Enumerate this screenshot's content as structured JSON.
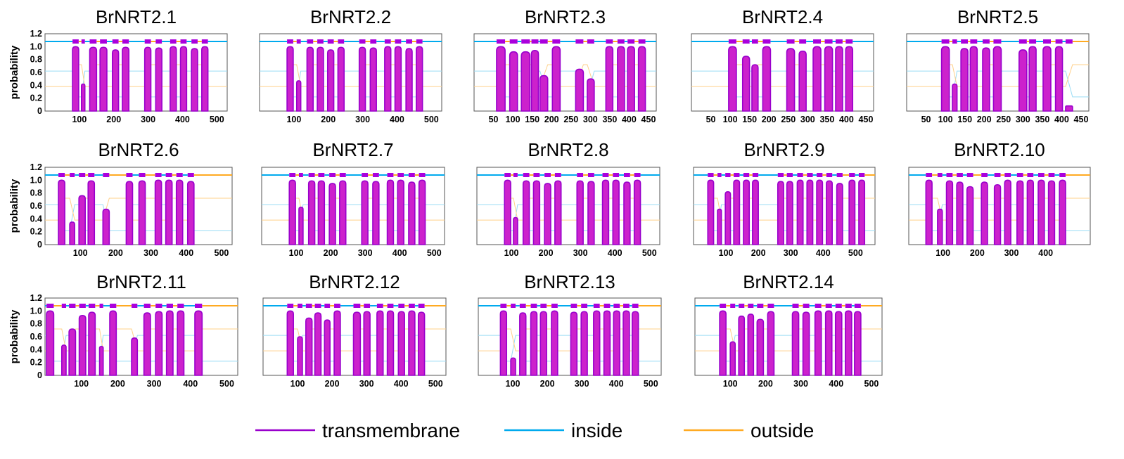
{
  "chart_data": {
    "type": "line",
    "panels": [
      {
        "title": "BrNRT2.1",
        "xmax": 530,
        "xticks": [
          100,
          200,
          300,
          400,
          500
        ],
        "yticks": [
          0,
          0.2,
          0.4,
          0.6,
          0.8,
          1.0,
          1.2
        ],
        "ylabel": "probability",
        "tm": [
          [
            80,
            98,
            1.0
          ],
          [
            106,
            116,
            0.42
          ],
          [
            130,
            150,
            0.99
          ],
          [
            160,
            180,
            0.99
          ],
          [
            196,
            214,
            0.95
          ],
          [
            225,
            244,
            0.99
          ],
          [
            290,
            308,
            0.99
          ],
          [
            322,
            340,
            0.98
          ],
          [
            364,
            382,
            1.0
          ],
          [
            394,
            412,
            1.0
          ],
          [
            426,
            444,
            0.97
          ],
          [
            456,
            474,
            1.0
          ]
        ]
      },
      {
        "title": "BrNRT2.2",
        "xmax": 530,
        "xticks": [
          100,
          200,
          300,
          400,
          500
        ],
        "yticks": [],
        "ylabel": "",
        "tm": [
          [
            80,
            98,
            1.0
          ],
          [
            108,
            120,
            0.47
          ],
          [
            138,
            156,
            0.99
          ],
          [
            168,
            186,
            0.99
          ],
          [
            198,
            216,
            0.95
          ],
          [
            228,
            246,
            0.99
          ],
          [
            290,
            308,
            0.99
          ],
          [
            322,
            340,
            0.98
          ],
          [
            364,
            382,
            1.0
          ],
          [
            394,
            412,
            1.0
          ],
          [
            426,
            444,
            0.97
          ],
          [
            456,
            474,
            1.0
          ]
        ]
      },
      {
        "title": "BrNRT2.3",
        "xmax": 470,
        "xticks": [
          50,
          100,
          150,
          200,
          250,
          300,
          350,
          400,
          450
        ],
        "yticks": [],
        "ylabel": "",
        "tm": [
          [
            58,
            80,
            1.0
          ],
          [
            92,
            112,
            0.92
          ],
          [
            122,
            144,
            0.92
          ],
          [
            148,
            166,
            0.94
          ],
          [
            170,
            190,
            0.55
          ],
          [
            202,
            222,
            1.0
          ],
          [
            262,
            282,
            0.65
          ],
          [
            292,
            310,
            0.5
          ],
          [
            340,
            358,
            1.0
          ],
          [
            370,
            388,
            1.0
          ],
          [
            396,
            414,
            1.0
          ],
          [
            424,
            442,
            1.0
          ]
        ]
      },
      {
        "title": "BrNRT2.4",
        "xmax": 470,
        "xticks": [
          50,
          100,
          150,
          200,
          250,
          300,
          350,
          400,
          450
        ],
        "yticks": [],
        "ylabel": "",
        "tm": [
          [
            96,
            116,
            1.0
          ],
          [
            132,
            150,
            0.85
          ],
          [
            156,
            172,
            0.72
          ],
          [
            184,
            204,
            1.0
          ],
          [
            246,
            266,
            0.97
          ],
          [
            278,
            296,
            0.93
          ],
          [
            314,
            334,
            1.0
          ],
          [
            344,
            364,
            1.0
          ],
          [
            372,
            390,
            1.0
          ],
          [
            398,
            416,
            1.0
          ]
        ]
      },
      {
        "title": "BrNRT2.5",
        "xmax": 470,
        "xticks": [
          50,
          100,
          150,
          200,
          250,
          300,
          350,
          400,
          450
        ],
        "yticks": [],
        "ylabel": "",
        "tm": [
          [
            90,
            110,
            1.0
          ],
          [
            118,
            130,
            0.42
          ],
          [
            140,
            158,
            0.97
          ],
          [
            164,
            182,
            1.0
          ],
          [
            196,
            214,
            0.98
          ],
          [
            224,
            244,
            1.0
          ],
          [
            290,
            310,
            0.95
          ],
          [
            316,
            334,
            1.0
          ],
          [
            352,
            372,
            1.0
          ],
          [
            384,
            402,
            1.0
          ],
          [
            410,
            428,
            0.08
          ]
        ]
      },
      {
        "title": "BrNRT2.6",
        "xmax": 530,
        "xticks": [
          100,
          200,
          300,
          400,
          500
        ],
        "yticks": [
          0,
          0.2,
          0.4,
          0.6,
          0.8,
          1.0,
          1.2
        ],
        "ylabel": "probability",
        "tm": [
          [
            38,
            56,
            1.0
          ],
          [
            70,
            84,
            0.35
          ],
          [
            96,
            114,
            0.76
          ],
          [
            122,
            140,
            0.99
          ],
          [
            164,
            182,
            0.55
          ],
          [
            230,
            248,
            0.98
          ],
          [
            266,
            284,
            0.99
          ],
          [
            312,
            330,
            1.0
          ],
          [
            342,
            360,
            1.0
          ],
          [
            372,
            390,
            1.0
          ],
          [
            404,
            422,
            0.98
          ]
        ]
      },
      {
        "title": "BrNRT2.7",
        "xmax": 530,
        "xticks": [
          100,
          200,
          300,
          400,
          500
        ],
        "yticks": [],
        "ylabel": "",
        "tm": [
          [
            80,
            98,
            1.0
          ],
          [
            108,
            120,
            0.58
          ],
          [
            136,
            154,
            0.99
          ],
          [
            164,
            182,
            0.99
          ],
          [
            196,
            214,
            0.95
          ],
          [
            226,
            244,
            0.99
          ],
          [
            290,
            308,
            0.99
          ],
          [
            322,
            340,
            0.98
          ],
          [
            364,
            382,
            1.0
          ],
          [
            394,
            412,
            1.0
          ],
          [
            426,
            444,
            0.97
          ],
          [
            456,
            474,
            1.0
          ]
        ]
      },
      {
        "title": "BrNRT2.8",
        "xmax": 530,
        "xticks": [
          100,
          200,
          300,
          400,
          500
        ],
        "yticks": [],
        "ylabel": "",
        "tm": [
          [
            80,
            98,
            1.0
          ],
          [
            106,
            118,
            0.42
          ],
          [
            134,
            152,
            0.99
          ],
          [
            164,
            182,
            0.99
          ],
          [
            196,
            214,
            0.95
          ],
          [
            226,
            244,
            0.99
          ],
          [
            290,
            308,
            0.99
          ],
          [
            322,
            340,
            0.98
          ],
          [
            364,
            382,
            1.0
          ],
          [
            394,
            412,
            1.0
          ],
          [
            426,
            444,
            0.97
          ],
          [
            456,
            474,
            1.0
          ]
        ]
      },
      {
        "title": "BrNRT2.9",
        "xmax": 560,
        "xticks": [
          100,
          200,
          300,
          400,
          500
        ],
        "yticks": [],
        "ylabel": "",
        "tm": [
          [
            44,
            62,
            1.0
          ],
          [
            74,
            86,
            0.55
          ],
          [
            98,
            114,
            0.82
          ],
          [
            124,
            142,
            1.0
          ],
          [
            154,
            172,
            1.0
          ],
          [
            182,
            200,
            1.0
          ],
          [
            260,
            278,
            0.98
          ],
          [
            288,
            306,
            0.98
          ],
          [
            320,
            338,
            1.0
          ],
          [
            350,
            368,
            1.0
          ],
          [
            380,
            398,
            1.0
          ],
          [
            410,
            428,
            0.99
          ],
          [
            442,
            460,
            0.95
          ],
          [
            480,
            498,
            1.0
          ],
          [
            510,
            528,
            1.0
          ]
        ]
      },
      {
        "title": "BrNRT2.10",
        "xmax": 530,
        "xticks": [
          100,
          200,
          300,
          400
        ],
        "yticks": [],
        "ylabel": "",
        "tm": [
          [
            50,
            68,
            1.0
          ],
          [
            84,
            98,
            0.55
          ],
          [
            110,
            128,
            0.99
          ],
          [
            140,
            158,
            0.97
          ],
          [
            170,
            188,
            0.9
          ],
          [
            212,
            230,
            0.97
          ],
          [
            250,
            268,
            0.93
          ],
          [
            280,
            298,
            1.0
          ],
          [
            316,
            334,
            0.99
          ],
          [
            346,
            364,
            1.0
          ],
          [
            378,
            396,
            1.0
          ],
          [
            408,
            426,
            0.99
          ],
          [
            440,
            458,
            1.0
          ]
        ]
      },
      {
        "title": "BrNRT2.11",
        "xmax": 530,
        "xticks": [
          100,
          200,
          300,
          400,
          500
        ],
        "yticks": [
          0,
          0.2,
          0.4,
          0.6,
          0.8,
          1.0,
          1.2
        ],
        "ylabel": "probability",
        "tm": [
          [
            4,
            24,
            1.0
          ],
          [
            46,
            58,
            0.47
          ],
          [
            66,
            84,
            0.72
          ],
          [
            94,
            112,
            0.93
          ],
          [
            120,
            138,
            0.98
          ],
          [
            150,
            160,
            0.45
          ],
          [
            178,
            196,
            1.0
          ],
          [
            238,
            254,
            0.58
          ],
          [
            272,
            290,
            0.97
          ],
          [
            304,
            322,
            0.99
          ],
          [
            334,
            352,
            1.0
          ],
          [
            364,
            382,
            1.0
          ],
          [
            412,
            432,
            1.0
          ]
        ]
      },
      {
        "title": "BrNRT2.12",
        "xmax": 530,
        "xticks": [
          100,
          200,
          300,
          400,
          500
        ],
        "yticks": [],
        "ylabel": "",
        "tm": [
          [
            70,
            88,
            1.0
          ],
          [
            100,
            114,
            0.6
          ],
          [
            124,
            142,
            0.89
          ],
          [
            150,
            168,
            0.97
          ],
          [
            178,
            194,
            0.86
          ],
          [
            206,
            224,
            1.0
          ],
          [
            262,
            282,
            0.98
          ],
          [
            292,
            310,
            0.99
          ],
          [
            330,
            348,
            1.0
          ],
          [
            360,
            378,
            1.0
          ],
          [
            392,
            410,
            0.99
          ],
          [
            422,
            440,
            1.0
          ],
          [
            450,
            468,
            0.98
          ]
        ]
      },
      {
        "title": "BrNRT2.13",
        "xmax": 530,
        "xticks": [
          100,
          200,
          300,
          400,
          500
        ],
        "yticks": [],
        "ylabel": "",
        "tm": [
          [
            64,
            82,
            1.0
          ],
          [
            94,
            108,
            0.27
          ],
          [
            120,
            138,
            0.97
          ],
          [
            152,
            170,
            0.99
          ],
          [
            180,
            198,
            0.99
          ],
          [
            212,
            230,
            1.0
          ],
          [
            268,
            286,
            0.98
          ],
          [
            298,
            316,
            0.99
          ],
          [
            334,
            352,
            1.0
          ],
          [
            364,
            382,
            1.0
          ],
          [
            392,
            410,
            1.0
          ],
          [
            420,
            438,
            1.0
          ],
          [
            446,
            464,
            0.99
          ]
        ]
      },
      {
        "title": "BrNRT2.14",
        "xmax": 530,
        "xticks": [
          100,
          200,
          300,
          400,
          500
        ],
        "yticks": [],
        "ylabel": "",
        "tm": [
          [
            70,
            88,
            1.0
          ],
          [
            100,
            114,
            0.52
          ],
          [
            124,
            140,
            0.92
          ],
          [
            150,
            166,
            0.95
          ],
          [
            176,
            194,
            0.87
          ],
          [
            206,
            224,
            0.99
          ],
          [
            276,
            294,
            0.99
          ],
          [
            306,
            324,
            0.98
          ],
          [
            340,
            358,
            1.0
          ],
          [
            370,
            388,
            1.0
          ],
          [
            398,
            416,
            0.99
          ],
          [
            426,
            444,
            1.0
          ],
          [
            452,
            470,
            0.99
          ]
        ]
      }
    ],
    "legend": [
      {
        "name": "transmembrane",
        "color": "#9900cc"
      },
      {
        "name": "inside",
        "color": "#00aaee"
      },
      {
        "name": "outside",
        "color": "#ffaa22"
      }
    ],
    "fill_color": "#cc22cc",
    "legend_position": "bottom"
  }
}
